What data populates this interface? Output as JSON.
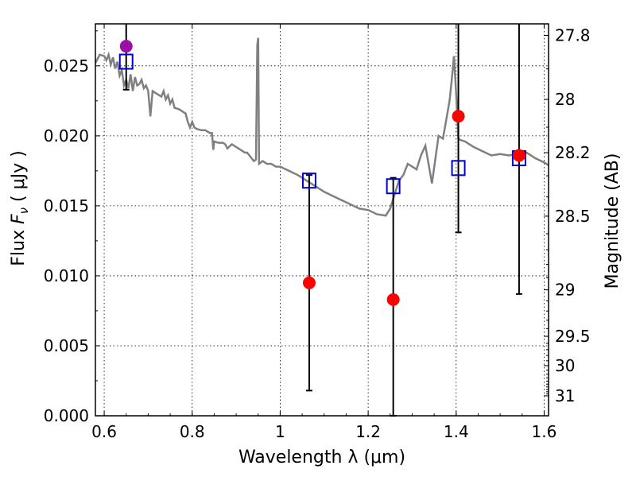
{
  "chart_data": {
    "type": "scatter",
    "xlabel": "Wavelength  λ (μm)",
    "ylabel_prefix": "Flux  ",
    "ylabel_symbol": "F",
    "ylabel_sub": "ν",
    "ylabel_suffix": "  ( μJy )",
    "y2label": "Magnitude (AB)",
    "xlim": [
      0.58,
      1.61
    ],
    "ylim": [
      0.0,
      0.028
    ],
    "grid": true,
    "x_ticks": [
      {
        "value": 0.6,
        "label": "0.6"
      },
      {
        "value": 0.8,
        "label": "0.8"
      },
      {
        "value": 1.0,
        "label": "1"
      },
      {
        "value": 1.2,
        "label": "1.2"
      },
      {
        "value": 1.4,
        "label": "1.4"
      },
      {
        "value": 1.6,
        "label": "1.6"
      }
    ],
    "y_ticks": [
      {
        "value": 0.0,
        "label": "0.000"
      },
      {
        "value": 0.005,
        "label": "0.005"
      },
      {
        "value": 0.01,
        "label": "0.010"
      },
      {
        "value": 0.015,
        "label": "0.015"
      },
      {
        "value": 0.02,
        "label": "0.020"
      },
      {
        "value": 0.025,
        "label": "0.025"
      }
    ],
    "y2_ticks": [
      {
        "mag": 27.8,
        "label": "27.8"
      },
      {
        "mag": 28.0,
        "label": "28"
      },
      {
        "mag": 28.2,
        "label": "28.2"
      },
      {
        "mag": 28.5,
        "label": "28.5"
      },
      {
        "mag": 29.0,
        "label": "29"
      },
      {
        "mag": 29.5,
        "label": "29.5"
      },
      {
        "mag": 30.0,
        "label": "30"
      },
      {
        "mag": 31.0,
        "label": "31"
      }
    ],
    "spectrum": {
      "color": "#808080",
      "points": [
        [
          0.58,
          0.0252
        ],
        [
          0.59,
          0.0258
        ],
        [
          0.6,
          0.0257
        ],
        [
          0.605,
          0.0254
        ],
        [
          0.61,
          0.0258
        ],
        [
          0.615,
          0.0251
        ],
        [
          0.62,
          0.0256
        ],
        [
          0.625,
          0.0248
        ],
        [
          0.63,
          0.0253
        ],
        [
          0.635,
          0.0243
        ],
        [
          0.64,
          0.0247
        ],
        [
          0.645,
          0.0236
        ],
        [
          0.65,
          0.024
        ],
        [
          0.655,
          0.0234
        ],
        [
          0.66,
          0.0244
        ],
        [
          0.665,
          0.0232
        ],
        [
          0.67,
          0.0242
        ],
        [
          0.675,
          0.0236
        ],
        [
          0.68,
          0.0237
        ],
        [
          0.685,
          0.024
        ],
        [
          0.69,
          0.0234
        ],
        [
          0.695,
          0.0236
        ],
        [
          0.7,
          0.0232
        ],
        [
          0.705,
          0.0214
        ],
        [
          0.71,
          0.0232
        ],
        [
          0.72,
          0.023
        ],
        [
          0.73,
          0.0228
        ],
        [
          0.735,
          0.0232
        ],
        [
          0.74,
          0.0226
        ],
        [
          0.745,
          0.0229
        ],
        [
          0.75,
          0.0223
        ],
        [
          0.755,
          0.0226
        ],
        [
          0.76,
          0.022
        ],
        [
          0.77,
          0.0219
        ],
        [
          0.78,
          0.0217
        ],
        [
          0.785,
          0.0216
        ],
        [
          0.79,
          0.021
        ],
        [
          0.795,
          0.0206
        ],
        [
          0.8,
          0.021
        ],
        [
          0.805,
          0.0206
        ],
        [
          0.81,
          0.0205
        ],
        [
          0.82,
          0.0204
        ],
        [
          0.83,
          0.0204
        ],
        [
          0.835,
          0.0203
        ],
        [
          0.84,
          0.0202
        ],
        [
          0.845,
          0.0202
        ],
        [
          0.848,
          0.019
        ],
        [
          0.85,
          0.0196
        ],
        [
          0.86,
          0.0195
        ],
        [
          0.87,
          0.0195
        ],
        [
          0.875,
          0.0194
        ],
        [
          0.88,
          0.0191
        ],
        [
          0.89,
          0.0194
        ],
        [
          0.9,
          0.0192
        ],
        [
          0.91,
          0.019
        ],
        [
          0.92,
          0.0188
        ],
        [
          0.925,
          0.0188
        ],
        [
          0.93,
          0.0186
        ],
        [
          0.935,
          0.0184
        ],
        [
          0.94,
          0.0182
        ],
        [
          0.945,
          0.0183
        ],
        [
          0.948,
          0.0265
        ],
        [
          0.95,
          0.027
        ],
        [
          0.952,
          0.018
        ],
        [
          0.96,
          0.0182
        ],
        [
          0.97,
          0.018
        ],
        [
          0.98,
          0.018
        ],
        [
          0.99,
          0.0178
        ],
        [
          1.0,
          0.0178
        ],
        [
          1.02,
          0.0175
        ],
        [
          1.04,
          0.0172
        ],
        [
          1.06,
          0.0168
        ],
        [
          1.08,
          0.0164
        ],
        [
          1.1,
          0.016
        ],
        [
          1.12,
          0.0157
        ],
        [
          1.14,
          0.0154
        ],
        [
          1.16,
          0.0151
        ],
        [
          1.18,
          0.0148
        ],
        [
          1.2,
          0.0147
        ],
        [
          1.22,
          0.0144
        ],
        [
          1.24,
          0.0143
        ],
        [
          1.25,
          0.0148
        ],
        [
          1.26,
          0.0158
        ],
        [
          1.27,
          0.0168
        ],
        [
          1.28,
          0.0172
        ],
        [
          1.29,
          0.018
        ],
        [
          1.3,
          0.0178
        ],
        [
          1.31,
          0.0176
        ],
        [
          1.32,
          0.0186
        ],
        [
          1.33,
          0.0193
        ],
        [
          1.345,
          0.0166
        ],
        [
          1.36,
          0.02
        ],
        [
          1.37,
          0.0198
        ],
        [
          1.385,
          0.0225
        ],
        [
          1.39,
          0.024
        ],
        [
          1.395,
          0.0257
        ],
        [
          1.4,
          0.023
        ],
        [
          1.405,
          0.0198
        ],
        [
          1.41,
          0.0197
        ],
        [
          1.42,
          0.0196
        ],
        [
          1.43,
          0.0194
        ],
        [
          1.44,
          0.0192
        ],
        [
          1.46,
          0.0189
        ],
        [
          1.48,
          0.0186
        ],
        [
          1.5,
          0.0187
        ],
        [
          1.52,
          0.0186
        ],
        [
          1.54,
          0.0187
        ],
        [
          1.56,
          0.0188
        ],
        [
          1.58,
          0.0184
        ],
        [
          1.6,
          0.0181
        ],
        [
          1.61,
          0.0179
        ]
      ]
    },
    "observed": [
      {
        "x": 0.65,
        "y": 0.0264,
        "color": "#9b0fa8",
        "err_low": 0.0233,
        "err_high": 0.028
      },
      {
        "x": 1.066,
        "y": 0.0095,
        "color": "#ff0000",
        "err_low": 0.0018,
        "err_high": 0.0172
      },
      {
        "x": 1.257,
        "y": 0.0083,
        "color": "#ff0000",
        "err_low": 0.0,
        "err_high": 0.017
      },
      {
        "x": 1.405,
        "y": 0.0214,
        "color": "#ff0000",
        "err_low": 0.0131,
        "err_high": 0.028
      },
      {
        "x": 1.543,
        "y": 0.0186,
        "color": "#ff0000",
        "err_low": 0.0087,
        "err_high": 0.028
      }
    ],
    "model_points": {
      "color": "#0000cc",
      "points": [
        {
          "x": 0.65,
          "y": 0.0253
        },
        {
          "x": 1.066,
          "y": 0.0168
        },
        {
          "x": 1.257,
          "y": 0.0164
        },
        {
          "x": 1.405,
          "y": 0.0177
        },
        {
          "x": 1.543,
          "y": 0.0184
        }
      ]
    }
  }
}
